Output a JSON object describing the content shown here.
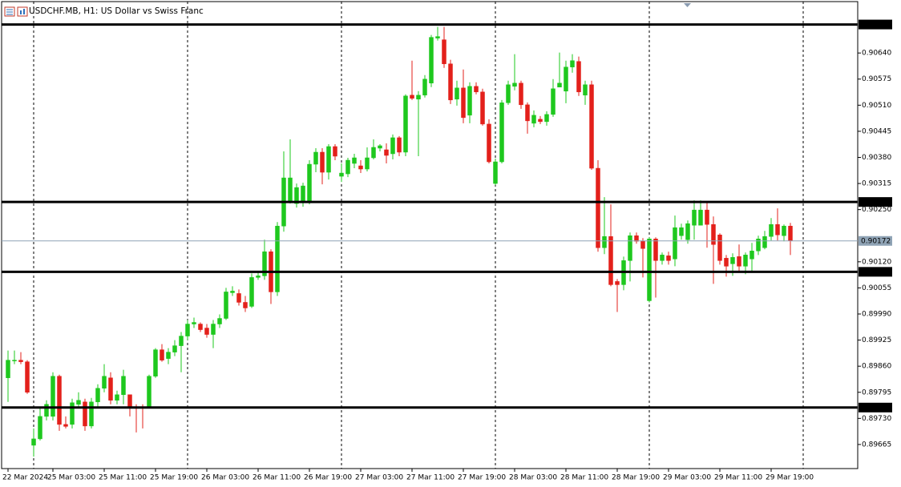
{
  "chart_data": {
    "type": "candlestick",
    "title": "USDCHF.MB, H1:  US Dollar vs Swiss Franc",
    "up_color": "#1ec81e",
    "down_color": "#e3201b",
    "grid": true,
    "ylim": [
      0.89605,
      0.90768
    ],
    "yticks": [
      {
        "value": 0.9064,
        "label": "0.90640"
      },
      0.90575,
      {
        "value": 0.9051,
        "label": "0.90510"
      },
      0.90445,
      {
        "value": 0.9038,
        "label": "0.90380"
      },
      0.90315,
      {
        "value": 0.9025,
        "label": "0.90250"
      },
      {
        "value": 0.9012,
        "label": "0.90120"
      },
      0.90055,
      {
        "value": 0.8999,
        "label": "0.89990"
      },
      0.89925,
      {
        "value": 0.8986,
        "label": "0.89860"
      },
      0.89795,
      {
        "value": 0.8973,
        "label": "0.89730"
      },
      0.89665
    ],
    "levels": [
      0.90711,
      0.90269,
      0.90095,
      0.89757
    ],
    "current_price": 0.90172,
    "categories": [
      "22 Mar 2024",
      null,
      null,
      null,
      null,
      null,
      null,
      "25 Mar 03:00",
      null,
      null,
      null,
      null,
      null,
      null,
      null,
      "25 Mar 11:00",
      null,
      null,
      null,
      null,
      null,
      null,
      null,
      "25 Mar 19:00",
      null,
      null,
      null,
      null,
      null,
      null,
      null,
      "26 Mar 03:00",
      null,
      null,
      null,
      null,
      null,
      null,
      null,
      "26 Mar 11:00",
      null,
      null,
      null,
      null,
      null,
      null,
      null,
      "26 Mar 19:00",
      null,
      null,
      null,
      null,
      null,
      null,
      null,
      "27 Mar 03:00",
      null,
      null,
      null,
      null,
      null,
      null,
      null,
      "27 Mar 11:00",
      null,
      null,
      null,
      null,
      null,
      null,
      null,
      "27 Mar 19:00",
      null,
      null,
      null,
      null,
      null,
      null,
      null,
      "28 Mar 03:00",
      null,
      null,
      null,
      null,
      null,
      null,
      null,
      "28 Mar 11:00",
      null,
      null,
      null,
      null,
      null,
      null,
      null,
      "28 Mar 19:00",
      null,
      null,
      null,
      null,
      null,
      null,
      null,
      "29 Mar 03:00",
      null,
      null,
      null,
      null,
      null,
      null,
      null,
      "29 Mar 11:00",
      null,
      null,
      null,
      null,
      null,
      null,
      null,
      "29 Mar 19:00",
      null,
      null,
      null
    ],
    "open": [
      0.89831,
      0.89873,
      0.89875,
      0.89871,
      0.89663,
      0.89679,
      0.89735,
      0.89735,
      0.89835,
      0.89715,
      0.89715,
      0.89765,
      0.89771,
      0.89711,
      0.89771,
      0.89805,
      0.89831,
      0.89775,
      0.89789,
      0.89789,
      0.89759,
      0.89757,
      0.89759,
      0.89835,
      0.89901,
      0.89879,
      0.89895,
      0.89911,
      0.89935,
      0.89965,
      0.89965,
      0.89955,
      0.89939,
      0.89965,
      0.89979,
      0.90043,
      0.90041,
      0.90019,
      0.90009,
      0.90081,
      0.90085,
      0.90145,
      0.90045,
      0.90209,
      0.90267,
      0.90265,
      0.90269,
      0.90269,
      0.90363,
      0.90393,
      0.90343,
      0.90407,
      0.90333,
      0.90339,
      0.90365,
      0.90359,
      0.90351,
      0.90379,
      0.90403,
      0.90399,
      0.90389,
      0.90429,
      0.90393,
      0.90535,
      0.90525,
      0.90535,
      0.90565,
      0.90677,
      0.90673,
      0.90613,
      0.90525,
      0.90553,
      0.90485,
      0.90557,
      0.90543,
      0.90463,
      0.90315,
      0.90369,
      0.90516,
      0.90557,
      0.90565,
      0.90511,
      0.90465,
      0.90475,
      0.90469,
      0.90487,
      0.90555,
      0.90545,
      0.90605,
      0.90619,
      0.90535,
      0.90561,
      0.90353,
      0.90155,
      0.90183,
      0.90071,
      0.90063,
      0.90123,
      0.90185,
      0.90171,
      0.90023,
      0.90177,
      0.90123,
      0.90135,
      0.90127,
      0.90185,
      0.90175,
      0.90211,
      0.90211,
      0.90249,
      0.90213,
      0.90187,
      0.90129,
      0.90115,
      0.90133,
      0.90109,
      0.90127,
      0.90147,
      0.90155,
      0.90183,
      0.90213,
      0.90185,
      0.90209
    ],
    "high": [
      0.89899,
      0.89899,
      0.89895,
      0.89875,
      0.89705,
      0.89755,
      0.89775,
      0.89845,
      0.89839,
      0.89735,
      0.89779,
      0.89795,
      0.89779,
      0.89781,
      0.89815,
      0.89865,
      0.89845,
      0.89799,
      0.89851,
      0.89789,
      0.89765,
      0.89765,
      0.89839,
      0.89905,
      0.89915,
      0.89905,
      0.89925,
      0.89945,
      0.89975,
      0.89981,
      0.89969,
      0.89965,
      0.89975,
      0.89989,
      0.90055,
      0.90059,
      0.90051,
      0.90035,
      0.90091,
      0.90095,
      0.90175,
      0.90151,
      0.90219,
      0.90395,
      0.90425,
      0.90315,
      0.90317,
      0.90373,
      0.90403,
      0.90403,
      0.90413,
      0.90413,
      0.90365,
      0.90379,
      0.90389,
      0.90373,
      0.90405,
      0.90425,
      0.90413,
      0.90415,
      0.90437,
      0.90433,
      0.90537,
      0.90621,
      0.90545,
      0.90585,
      0.90685,
      0.90705,
      0.90705,
      0.90623,
      0.90571,
      0.90599,
      0.90567,
      0.90567,
      0.90551,
      0.90475,
      0.90377,
      0.90523,
      0.90571,
      0.90637,
      0.90571,
      0.90517,
      0.90497,
      0.90483,
      0.90495,
      0.90575,
      0.90641,
      0.90621,
      0.90637,
      0.90631,
      0.90571,
      0.90571,
      0.90373,
      0.90281,
      0.90263,
      0.90077,
      0.90133,
      0.90193,
      0.90193,
      0.90179,
      0.90181,
      0.90181,
      0.90143,
      0.90145,
      0.90235,
      0.90215,
      0.90223,
      0.90273,
      0.90273,
      0.90269,
      0.90233,
      0.90191,
      0.90137,
      0.90141,
      0.90163,
      0.90143,
      0.90167,
      0.90185,
      0.90197,
      0.90229,
      0.90253,
      0.90213,
      0.90217
    ],
    "low": [
      0.89771,
      0.89865,
      0.89865,
      0.89791,
      0.89635,
      0.89675,
      0.89725,
      0.89725,
      0.89699,
      0.89705,
      0.89705,
      0.89755,
      0.89699,
      0.89705,
      0.89755,
      0.89795,
      0.89765,
      0.89765,
      0.89765,
      0.89735,
      0.89695,
      0.89705,
      0.89755,
      0.89831,
      0.89871,
      0.89865,
      0.89885,
      0.89845,
      0.89925,
      0.89955,
      0.89945,
      0.89931,
      0.89905,
      0.89955,
      0.89975,
      0.90035,
      0.90011,
      0.89995,
      0.90005,
      0.90075,
      0.90075,
      0.90015,
      0.90035,
      0.90195,
      0.90265,
      0.90255,
      0.90257,
      0.90263,
      0.90343,
      0.90313,
      0.90325,
      0.90373,
      0.90319,
      0.90331,
      0.90353,
      0.90341,
      0.90345,
      0.90375,
      0.90395,
      0.90365,
      0.90375,
      0.90383,
      0.90383,
      0.90523,
      0.90383,
      0.90529,
      0.90555,
      0.90671,
      0.90603,
      0.90513,
      0.90509,
      0.90465,
      0.90465,
      0.90537,
      0.90459,
      0.90365,
      0.90311,
      0.90365,
      0.90511,
      0.90547,
      0.90501,
      0.90439,
      0.90455,
      0.90463,
      0.90459,
      0.90481,
      0.90555,
      0.90515,
      0.90591,
      0.90533,
      0.90511,
      0.90349,
      0.90145,
      0.90139,
      0.90059,
      0.89995,
      0.90049,
      0.90071,
      0.90165,
      0.90081,
      0.90019,
      0.90031,
      0.90113,
      0.90113,
      0.90109,
      0.90175,
      0.90165,
      0.90175,
      0.90211,
      0.90155,
      0.90065,
      0.90113,
      0.90083,
      0.90085,
      0.90095,
      0.90089,
      0.90095,
      0.90137,
      0.90151,
      0.90173,
      0.90173,
      0.90171,
      0.90137
    ],
    "close": [
      0.89875,
      0.89875,
      0.89871,
      0.89795,
      0.89679,
      0.89735,
      0.89765,
      0.89835,
      0.89715,
      0.8971,
      0.89769,
      0.89775,
      0.89711,
      0.89771,
      0.89805,
      0.89835,
      0.89775,
      0.89789,
      0.89835,
      0.89759,
      0.89755,
      0.89755,
      0.89835,
      0.89901,
      0.89875,
      0.89895,
      0.89911,
      0.89935,
      0.89965,
      0.89969,
      0.89951,
      0.89939,
      0.89965,
      0.89979,
      0.90045,
      0.90047,
      0.90019,
      0.90005,
      0.90081,
      0.90085,
      0.90145,
      0.90045,
      0.90209,
      0.90329,
      0.90329,
      0.90305,
      0.90309,
      0.90363,
      0.90393,
      0.90343,
      0.90407,
      0.90383,
      0.90341,
      0.90373,
      0.90379,
      0.90351,
      0.90379,
      0.90405,
      0.90409,
      0.90385,
      0.90429,
      0.90393,
      0.90533,
      0.90527,
      0.90535,
      0.90575,
      0.90679,
      0.90681,
      0.90613,
      0.90523,
      0.90553,
      0.90479,
      0.90557,
      0.90543,
      0.90463,
      0.90369,
      0.90369,
      0.90516,
      0.90561,
      0.90565,
      0.90511,
      0.90471,
      0.90485,
      0.90469,
      0.90487,
      0.90551,
      0.90565,
      0.90605,
      0.90621,
      0.90543,
      0.90561,
      0.90353,
      0.90155,
      0.90183,
      0.90063,
      0.90063,
      0.90123,
      0.90185,
      0.90171,
      0.90153,
      0.90177,
      0.90123,
      0.90137,
      0.90123,
      0.90205,
      0.90205,
      0.90215,
      0.90249,
      0.90249,
      0.90213,
      0.90163,
      0.90123,
      0.90109,
      0.90131,
      0.90109,
      0.90137,
      0.90147,
      0.90177,
      0.90183,
      0.90213,
      0.90187,
      0.90209,
      0.90172
    ]
  }
}
